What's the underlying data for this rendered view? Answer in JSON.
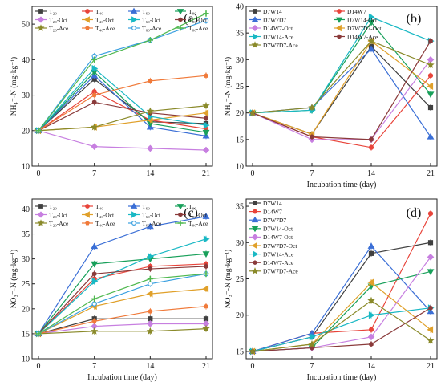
{
  "chart_data": [
    {
      "panel": "(a)",
      "type": "line",
      "ylabel": "NH₄⁺-N (mg·kg⁻¹)",
      "xlabel": "",
      "x": [
        0,
        7,
        14,
        21
      ],
      "xticks": [
        "0",
        "7",
        "14",
        "21"
      ],
      "ylim": [
        10,
        55
      ],
      "yticks": [
        10,
        20,
        30,
        40,
        50
      ],
      "legend_position": "top-left",
      "series": [
        {
          "name": "T₂₀",
          "color": "#404040",
          "marker": "square",
          "values": [
            20,
            34.5,
            22.5,
            22
          ]
        },
        {
          "name": "T₄₀",
          "color": "#e8443a",
          "marker": "circle",
          "values": [
            20,
            31,
            23,
            20.5
          ]
        },
        {
          "name": "T₆₀",
          "color": "#3b6fd6",
          "marker": "triangle",
          "values": [
            20,
            35.5,
            21,
            18.5
          ]
        },
        {
          "name": "T₈₀",
          "color": "#18a05a",
          "marker": "triangle-down",
          "values": [
            20,
            36.5,
            22,
            19.5
          ]
        },
        {
          "name": "T₂₀-Oct",
          "color": "#c77fe0",
          "marker": "diamond",
          "values": [
            20,
            15.5,
            15,
            14.5
          ]
        },
        {
          "name": "T₄₀-Oct",
          "color": "#e0a02a",
          "marker": "tri-left",
          "values": [
            20,
            21,
            23,
            25
          ]
        },
        {
          "name": "T₆₀-Oct",
          "color": "#19b8c4",
          "marker": "tri-right",
          "values": [
            20,
            37.5,
            24,
            21.5
          ]
        },
        {
          "name": "T₈₀-Oct",
          "color": "#8a3a3a",
          "marker": "hexagon",
          "values": [
            20,
            28,
            25,
            23.5
          ]
        },
        {
          "name": "T₂₀-Ace",
          "color": "#8a8a2a",
          "marker": "star",
          "values": [
            20,
            21,
            25.5,
            27
          ]
        },
        {
          "name": "T₄₀-Ace",
          "color": "#f07a3a",
          "marker": "pentagon",
          "values": [
            20,
            30,
            34,
            35.5
          ]
        },
        {
          "name": "T₆₀-Ace",
          "color": "#3aa0e0",
          "marker": "circle-open",
          "values": [
            20,
            41,
            45.5,
            51
          ]
        },
        {
          "name": "T₈₀-Ace",
          "color": "#4fb84f",
          "marker": "plus",
          "values": [
            20,
            40,
            45.5,
            53
          ]
        }
      ]
    },
    {
      "panel": "(b)",
      "type": "line",
      "ylabel": "NH₄⁺-N (mg·kg⁻¹)",
      "xlabel": "Incubation time (day)",
      "x": [
        0,
        7,
        14,
        21
      ],
      "xticks": [
        "0",
        "7",
        "14",
        "21"
      ],
      "ylim": [
        10,
        40
      ],
      "yticks": [
        10,
        15,
        20,
        25,
        30,
        35,
        40
      ],
      "legend_position": "top",
      "series": [
        {
          "name": "D7W14",
          "color": "#404040",
          "marker": "square",
          "values": [
            20,
            16,
            32.5,
            21
          ]
        },
        {
          "name": "D14W7",
          "color": "#e8443a",
          "marker": "circle",
          "values": [
            20,
            15.5,
            13.5,
            27
          ]
        },
        {
          "name": "D7W7D7",
          "color": "#3b6fd6",
          "marker": "triangle",
          "values": [
            20,
            21,
            32,
            15.5
          ]
        },
        {
          "name": "D7W14-Oct",
          "color": "#18a05a",
          "marker": "triangle-down",
          "values": [
            20,
            20.5,
            37,
            23.5
          ]
        },
        {
          "name": "D14W7-Oct",
          "color": "#c77fe0",
          "marker": "diamond",
          "values": [
            20,
            15,
            15,
            30
          ]
        },
        {
          "name": "D7W7D7-Oct",
          "color": "#e0a02a",
          "marker": "tri-left",
          "values": [
            20,
            16,
            33.5,
            25
          ]
        },
        {
          "name": "D7W14-Ace",
          "color": "#19b8c4",
          "marker": "tri-right",
          "values": [
            20,
            20.5,
            38,
            33.5
          ]
        },
        {
          "name": "D14W7-Ace",
          "color": "#8a3a3a",
          "marker": "hexagon",
          "values": [
            20,
            15.5,
            15,
            33.5
          ]
        },
        {
          "name": "D7W7D7-Ace",
          "color": "#8a8a2a",
          "marker": "star",
          "values": [
            20,
            21,
            33.5,
            29
          ]
        }
      ]
    },
    {
      "panel": "(c)",
      "type": "line",
      "ylabel": "NO₃⁻-N (mg·kg⁻¹)",
      "xlabel": "Incubation time (day)",
      "x": [
        0,
        7,
        14,
        21
      ],
      "xticks": [
        "0",
        "7",
        "14",
        "21"
      ],
      "ylim": [
        10,
        42
      ],
      "yticks": [
        10,
        15,
        20,
        25,
        30,
        35,
        40
      ],
      "legend_position": "top-left",
      "series": [
        {
          "name": "T₂₀",
          "color": "#404040",
          "marker": "square",
          "values": [
            15,
            18,
            18,
            18
          ]
        },
        {
          "name": "T₄₀",
          "color": "#e8443a",
          "marker": "circle",
          "values": [
            15,
            26,
            28.5,
            29
          ]
        },
        {
          "name": "T₆₀",
          "color": "#3b6fd6",
          "marker": "triangle",
          "values": [
            15,
            32.5,
            36.5,
            38.5
          ]
        },
        {
          "name": "T₈₀",
          "color": "#18a05a",
          "marker": "triangle-down",
          "values": [
            15,
            29,
            30,
            31
          ]
        },
        {
          "name": "T₂₀-Oct",
          "color": "#c77fe0",
          "marker": "diamond",
          "values": [
            15,
            16.5,
            17,
            17
          ]
        },
        {
          "name": "T₄₀-Oct",
          "color": "#e0a02a",
          "marker": "tri-left",
          "values": [
            15,
            20.5,
            23,
            24
          ]
        },
        {
          "name": "T₆₀-Oct",
          "color": "#19b8c4",
          "marker": "tri-right",
          "values": [
            15,
            25.5,
            30.5,
            34
          ]
        },
        {
          "name": "T₈₀-Oct",
          "color": "#8a3a3a",
          "marker": "hexagon",
          "values": [
            15,
            27,
            28,
            28.5
          ]
        },
        {
          "name": "T₂₀-Ace",
          "color": "#8a8a2a",
          "marker": "star",
          "values": [
            15,
            15.5,
            15.5,
            16
          ]
        },
        {
          "name": "T₄₀-Ace",
          "color": "#f07a3a",
          "marker": "pentagon",
          "values": [
            15,
            17.5,
            19.5,
            20.5
          ]
        },
        {
          "name": "T₆₀-Ace",
          "color": "#3aa0e0",
          "marker": "circle-open",
          "values": [
            15,
            21,
            25,
            27
          ]
        },
        {
          "name": "T₈₀-Ace",
          "color": "#4fb84f",
          "marker": "plus",
          "values": [
            15,
            22,
            26,
            27
          ]
        }
      ]
    },
    {
      "panel": "(d)",
      "type": "line",
      "ylabel": "NO₃⁻-N (mg·kg⁻¹)",
      "xlabel": "Incubation time (day)",
      "x": [
        0,
        7,
        14,
        21
      ],
      "xticks": [
        "0",
        "7",
        "14",
        "21"
      ],
      "ylim": [
        14,
        36
      ],
      "yticks": [
        15,
        20,
        25,
        30,
        35
      ],
      "legend_position": "top-left",
      "series": [
        {
          "name": "D7W14",
          "color": "#404040",
          "marker": "square",
          "values": [
            15,
            17,
            28.5,
            30
          ]
        },
        {
          "name": "D14W7",
          "color": "#e8443a",
          "marker": "circle",
          "values": [
            15,
            17.5,
            18,
            34
          ]
        },
        {
          "name": "D7W7D7",
          "color": "#3b6fd6",
          "marker": "triangle",
          "values": [
            15,
            17.5,
            29.5,
            20.5
          ]
        },
        {
          "name": "D7W14-Oct",
          "color": "#18a05a",
          "marker": "triangle-down",
          "values": [
            15,
            15.5,
            24,
            26
          ]
        },
        {
          "name": "D14W7-Oct",
          "color": "#c77fe0",
          "marker": "diamond",
          "values": [
            15,
            15.5,
            17,
            28
          ]
        },
        {
          "name": "D7W7D7-Oct",
          "color": "#e0a02a",
          "marker": "tri-left",
          "values": [
            15,
            16,
            24.5,
            18
          ]
        },
        {
          "name": "D7W14-Ace",
          "color": "#19b8c4",
          "marker": "tri-right",
          "values": [
            15,
            17,
            20,
            21
          ]
        },
        {
          "name": "D14W7-Ace",
          "color": "#8a3a3a",
          "marker": "hexagon",
          "values": [
            15,
            15.5,
            16,
            21
          ]
        },
        {
          "name": "D7W7D7-Ace",
          "color": "#8a8a2a",
          "marker": "star",
          "values": [
            15,
            16,
            22,
            16.5
          ]
        }
      ]
    }
  ]
}
